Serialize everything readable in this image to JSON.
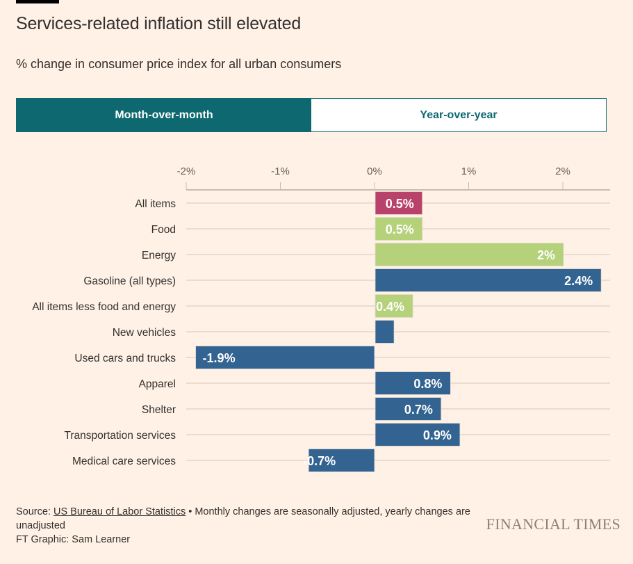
{
  "header": {
    "title": "Services-related inflation still elevated",
    "subtitle": "% change in consumer price index for all urban consumers"
  },
  "toggle": {
    "options": [
      "Month-over-month",
      "Year-over-year"
    ],
    "selected": "Month-over-month"
  },
  "chart_data": {
    "type": "bar",
    "orientation": "horizontal",
    "xlim": [
      -2,
      2.5
    ],
    "x_ticks": [
      "-2%",
      "-1%",
      "0%",
      "1%",
      "2%"
    ],
    "x_tick_values": [
      -2,
      -1,
      0,
      1,
      2
    ],
    "axis_position": "top",
    "grid": true,
    "categories": [
      "All items",
      "Food",
      "Energy",
      "Gasoline (all types)",
      "All items less food and energy",
      "New vehicles",
      "Used cars and trucks",
      "Apparel",
      "Shelter",
      "Transportation services",
      "Medical care services"
    ],
    "values": [
      0.5,
      0.5,
      2,
      2.4,
      0.4,
      0.2,
      -1.9,
      0.8,
      0.7,
      0.9,
      -0.7
    ],
    "data_labels": [
      "0.5%",
      "0.5%",
      "2%",
      "2.4%",
      "0.4%",
      "",
      "-1.9%",
      "0.8%",
      "0.7%",
      "0.9%",
      "-0.7%"
    ],
    "bar_colors": [
      "#b8426a",
      "#b5d17a",
      "#b5d17a",
      "#336391",
      "#b5d17a",
      "#336391",
      "#336391",
      "#336391",
      "#336391",
      "#336391",
      "#336391"
    ]
  },
  "footer": {
    "source_prefix": "Source: ",
    "source_link": "US Bureau of Labor Statistics",
    "source_note": " • Monthly changes are seasonally adjusted, yearly changes are unadjusted",
    "credit": "FT Graphic: Sam Learner"
  },
  "logo": "FINANCIAL TIMES"
}
